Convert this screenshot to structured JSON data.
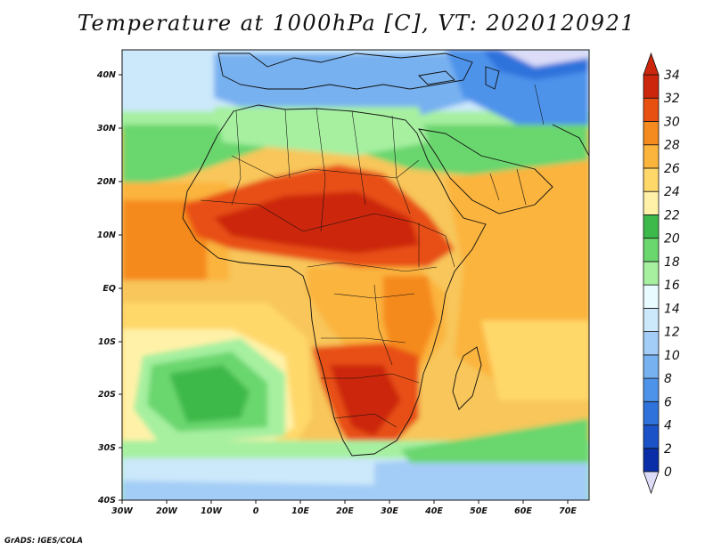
{
  "title": "Temperature at 1000hPa [C], VT: 2020120921",
  "credit": "GrADS: IGES/COLA",
  "axes": {
    "lat_labels": [
      "40N",
      "30N",
      "20N",
      "10N",
      "EQ",
      "10S",
      "20S",
      "30S",
      "40S"
    ],
    "lon_labels": [
      "30W",
      "20W",
      "10W",
      "0",
      "10E",
      "20E",
      "30E",
      "40E",
      "50E",
      "60E",
      "70E"
    ]
  },
  "colorbar": {
    "labels": [
      "0",
      "2",
      "4",
      "6",
      "8",
      "10",
      "12",
      "14",
      "16",
      "18",
      "20",
      "22",
      "24",
      "26",
      "28",
      "30",
      "32",
      "34"
    ],
    "colors": [
      "#000a6e",
      "#0a2ea8",
      "#1c52c8",
      "#2f72dc",
      "#4d93ea",
      "#78b1f0",
      "#a3cdf6",
      "#cce8fb",
      "#e8fcff",
      "#a6f0a0",
      "#6ad66e",
      "#3cb94a",
      "#fff2a8",
      "#ffd86a",
      "#fbb43c",
      "#f58a1e",
      "#e85012",
      "#cc260c",
      "#dcdcf8"
    ]
  }
}
